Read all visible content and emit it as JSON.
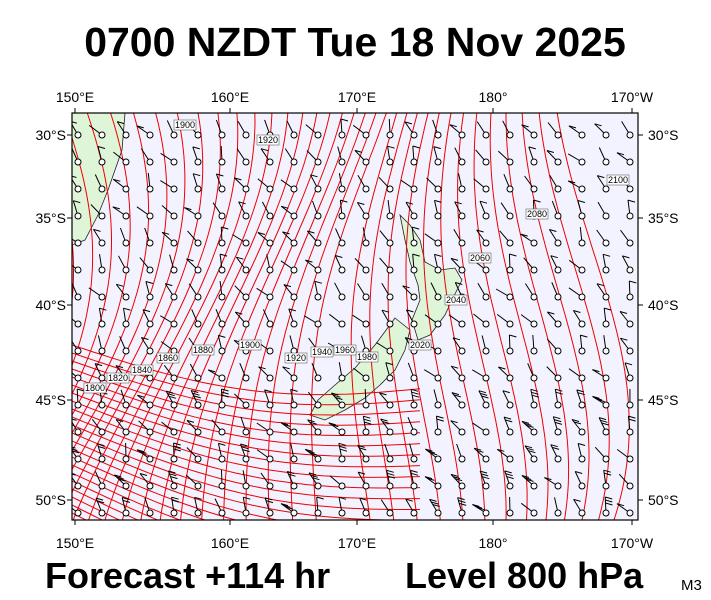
{
  "header": {
    "title": "0700 NZDT Tue 18 Nov 2025"
  },
  "map": {
    "lon_labels": [
      "150°E",
      "160°E",
      "170°E",
      "180°",
      "170°W"
    ],
    "lat_labels": [
      "30°S",
      "35°S",
      "40°S",
      "45°S",
      "50°S"
    ],
    "contour_labels": [
      "1900",
      "1920",
      "2100",
      "2080",
      "2060",
      "2040",
      "2020",
      "1980",
      "1960",
      "1940",
      "1920",
      "1900",
      "1880",
      "1860",
      "1840",
      "1820",
      "1800"
    ]
  },
  "footer": {
    "forecast": "Forecast +114 hr",
    "level": "Level 800 hPa",
    "code": "M3"
  }
}
